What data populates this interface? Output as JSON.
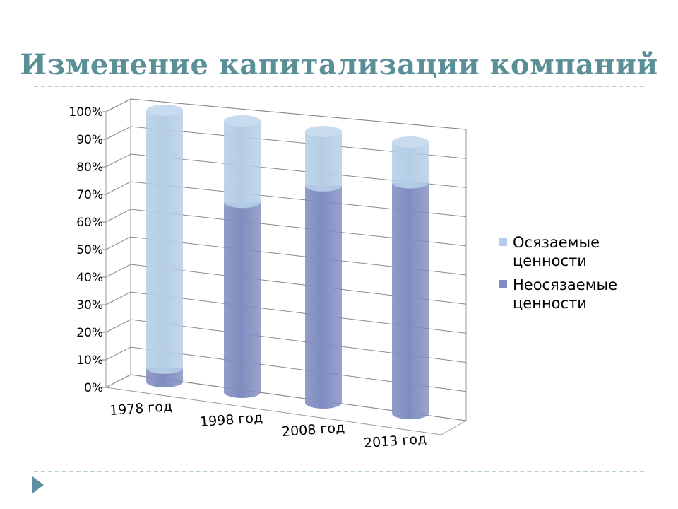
{
  "slide": {
    "title": "Изменение капитализации компаний"
  },
  "chart_data": {
    "type": "bar",
    "stacked": true,
    "normalized": true,
    "three_d": true,
    "categories": [
      "1978 год",
      "1998 год",
      "2008 год",
      "2013 год"
    ],
    "series": [
      {
        "name": "Неосязаемые ценности",
        "color": "#7f8cc0",
        "values": [
          5,
          70,
          80,
          85
        ]
      },
      {
        "name": "Осязаемые ценности",
        "color": "#b4cde6",
        "values": [
          95,
          30,
          20,
          15
        ]
      }
    ],
    "y_ticks": [
      "0%",
      "10%",
      "20%",
      "30%",
      "40%",
      "50%",
      "60%",
      "70%",
      "80%",
      "90%",
      "100%"
    ],
    "ylim": [
      0,
      100
    ],
    "grid": true,
    "legend_position": "right"
  },
  "legend": {
    "items": [
      {
        "label": "Осязаемые ценности",
        "color": "#b4cde6"
      },
      {
        "label": "Неосязаемые ценности",
        "color": "#7f8cc0"
      }
    ]
  }
}
